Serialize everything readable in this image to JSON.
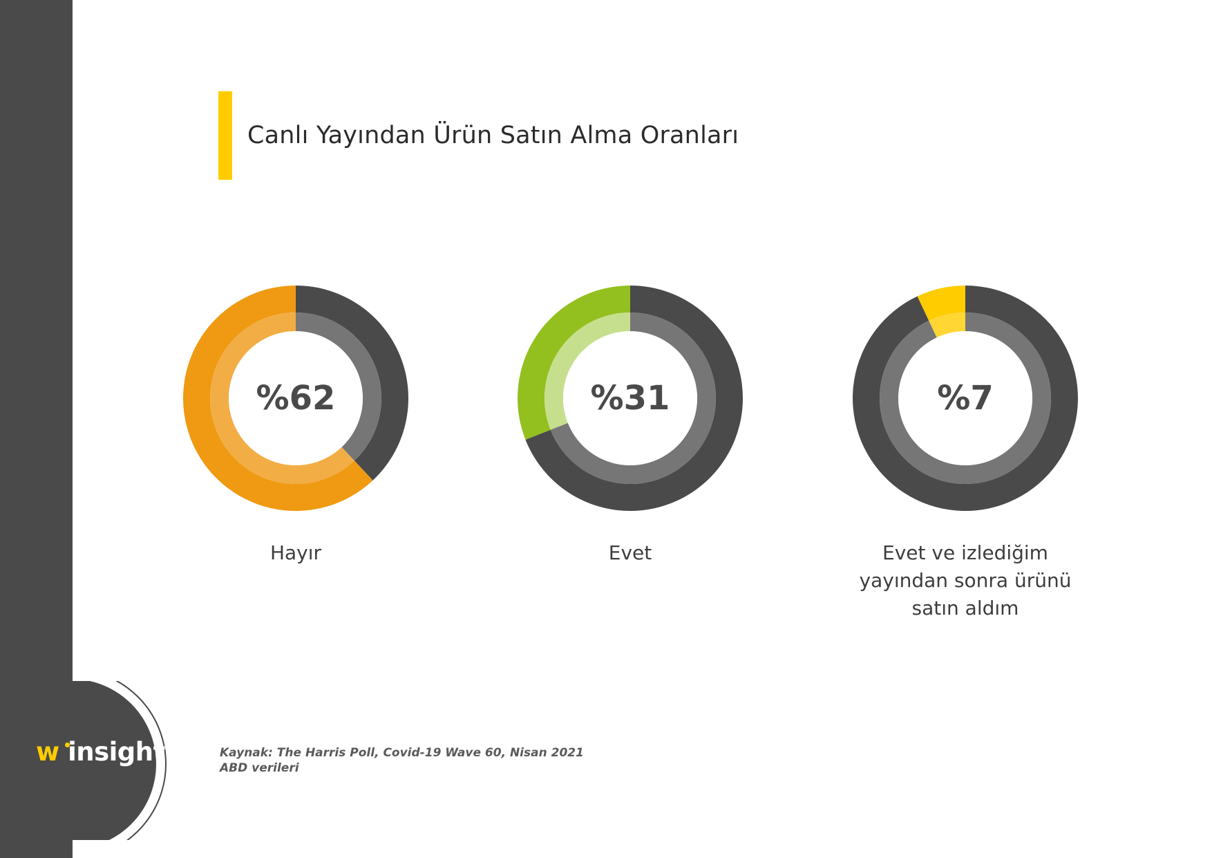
{
  "title": "Canlı Yayından Ürün Satın Alma Oranları",
  "chart_data": {
    "type": "pie",
    "style": "donut",
    "title": "Canlı Yayından Ürün Satın Alma Oranları",
    "items": [
      {
        "label": "Hayır",
        "value": 62,
        "display": "%62",
        "color": "#ef9a12",
        "inner_color": "#f3ad45"
      },
      {
        "label": "Evet",
        "value": 31,
        "display": "%31",
        "color": "#93c01f",
        "inner_color": "#c6df8f"
      },
      {
        "label": "Evet ve izlediğim yayından sonra ürünü satın aldım",
        "value": 7,
        "display": "%7",
        "color": "#ffcc00",
        "inner_color": "#ffd633"
      }
    ],
    "remainder_color": "#4a4a4a",
    "remainder_inner_color": "#767676"
  },
  "logo": {
    "letter": "w",
    "text": "insights"
  },
  "source": {
    "line1": "Kaynak: The Harris Poll, Covid-19 Wave 60, Nisan 2021",
    "line2": "ABD verileri"
  },
  "colors": {
    "sidebar": "#4a4a4a",
    "accent": "#ffcc00"
  }
}
